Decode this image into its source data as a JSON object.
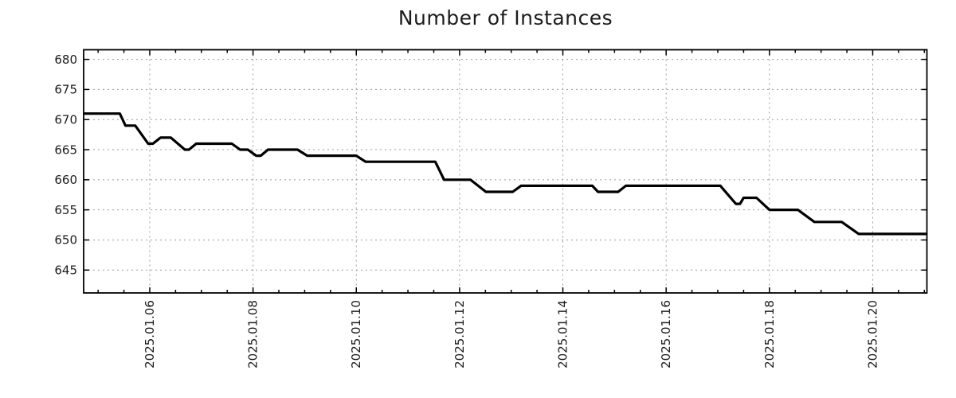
{
  "title": "Number of Instances",
  "colors": {
    "line": "#000000",
    "grid": "#9a9a9a",
    "axis": "#000000",
    "background": "#ffffff",
    "text": "#1c1c1c"
  },
  "chart_data": {
    "type": "line",
    "title": "Number of Instances",
    "xlabel": "",
    "ylabel": "",
    "grid": "dashed",
    "legend_position": "none",
    "x_axis": {
      "kind": "date",
      "major_tick_labels": [
        "2025.01.06",
        "2025.01.08",
        "2025.01.10",
        "2025.01.12",
        "2025.01.14",
        "2025.01.16",
        "2025.01.18",
        "2025.01.20"
      ],
      "major_tick_days": [
        6,
        8,
        10,
        12,
        14,
        16,
        18,
        20
      ],
      "minor_tick_step_days": 0.5,
      "range_days": [
        4.72,
        21.05
      ]
    },
    "y_axis": {
      "ticks": [
        645,
        650,
        655,
        660,
        665,
        670,
        675,
        680
      ],
      "range": [
        641.2,
        681.6
      ]
    },
    "series": [
      {
        "name": "instances",
        "color": "#000000",
        "points_day_value": [
          [
            4.72,
            671
          ],
          [
            5.42,
            671
          ],
          [
            5.53,
            669
          ],
          [
            5.72,
            669
          ],
          [
            5.97,
            666
          ],
          [
            6.06,
            666
          ],
          [
            6.21,
            667
          ],
          [
            6.41,
            667
          ],
          [
            6.68,
            665
          ],
          [
            6.76,
            665
          ],
          [
            6.9,
            666
          ],
          [
            7.59,
            666
          ],
          [
            7.75,
            665
          ],
          [
            7.9,
            665
          ],
          [
            8.06,
            664
          ],
          [
            8.15,
            664
          ],
          [
            8.29,
            665
          ],
          [
            8.86,
            665
          ],
          [
            9.05,
            664
          ],
          [
            10.0,
            664
          ],
          [
            10.18,
            663
          ],
          [
            11.53,
            663
          ],
          [
            11.7,
            660
          ],
          [
            12.21,
            660
          ],
          [
            12.51,
            658
          ],
          [
            13.03,
            658
          ],
          [
            13.19,
            659
          ],
          [
            14.57,
            659
          ],
          [
            14.68,
            658
          ],
          [
            15.07,
            658
          ],
          [
            15.22,
            659
          ],
          [
            17.05,
            659
          ],
          [
            17.35,
            656
          ],
          [
            17.43,
            656
          ],
          [
            17.5,
            657
          ],
          [
            17.75,
            657
          ],
          [
            18.0,
            655
          ],
          [
            18.55,
            655
          ],
          [
            18.87,
            653
          ],
          [
            19.4,
            653
          ],
          [
            19.73,
            651
          ],
          [
            21.05,
            651
          ]
        ]
      }
    ]
  }
}
